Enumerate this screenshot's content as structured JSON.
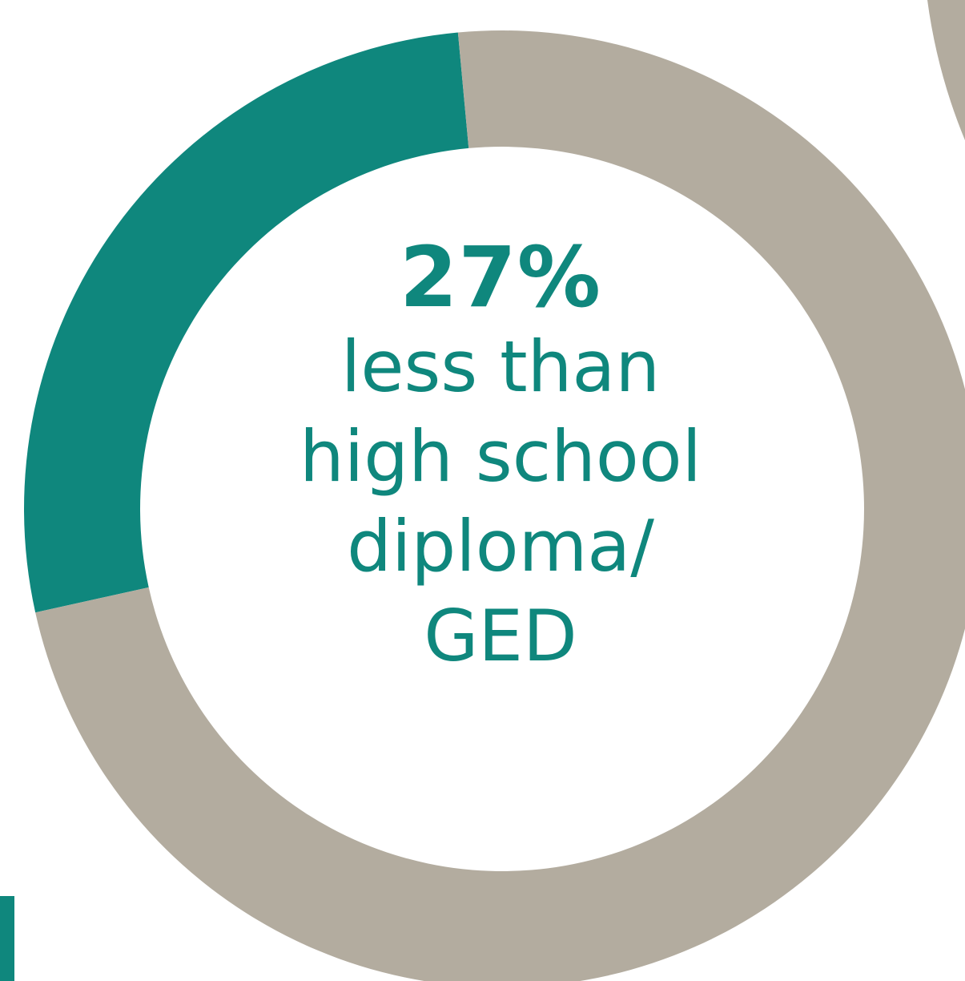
{
  "chart_data": {
    "type": "pie",
    "variant": "donut",
    "slices": [
      {
        "label": "less than high school diploma/ GED",
        "value": 27,
        "color": "#0f877d",
        "highlighted": true
      },
      {
        "label": "",
        "value": 73,
        "color": "#b3ac9f"
      }
    ],
    "center_label": {
      "value": "27%",
      "lines": [
        "less than",
        "high school",
        "diploma/",
        "GED"
      ]
    },
    "partial_background_elements": [
      {
        "kind": "adjacent-donut-ring-fragment",
        "color": "#b3ac9f",
        "location": "top-right"
      },
      {
        "kind": "cropped-label-fragment",
        "color": "#0f877d",
        "location": "bottom-left"
      }
    ]
  }
}
